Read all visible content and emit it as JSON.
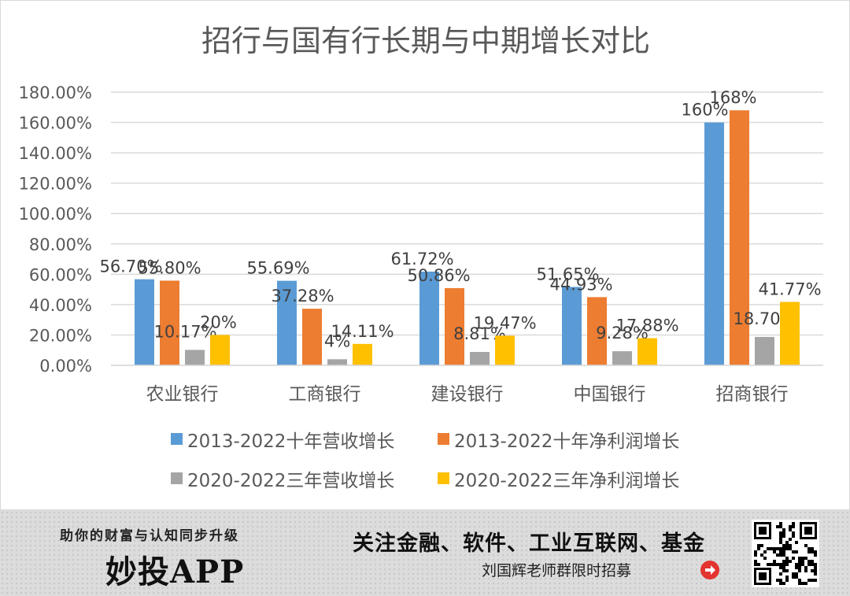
{
  "chart_data": {
    "type": "bar",
    "title": "招行与国有行长期与中期增长对比",
    "categories": [
      "农业银行",
      "工商银行",
      "建设银行",
      "中国银行",
      "招商银行"
    ],
    "ylim": [
      0,
      180
    ],
    "yticks": [
      "0.00%",
      "20.00%",
      "40.00%",
      "60.00%",
      "80.00%",
      "100.00%",
      "120.00%",
      "140.00%",
      "160.00%",
      "180.00%"
    ],
    "grid": true,
    "legend_position": "bottom",
    "series": [
      {
        "name": "2013-2022十年营收增长",
        "color": "#5b9bd5",
        "values": [
          56.7,
          55.69,
          61.72,
          51.65,
          160
        ],
        "labels": [
          "56.70%",
          "55.69%",
          "61.72%",
          "51.65%",
          "160%"
        ]
      },
      {
        "name": "2013-2022十年净利润增长",
        "color": "#ed7d31",
        "values": [
          55.8,
          37.28,
          50.86,
          44.93,
          168
        ],
        "labels": [
          "55.80%",
          "37.28%",
          "50.86%",
          "44.93%",
          "168%"
        ]
      },
      {
        "name": "2020-2022三年营收增长",
        "color": "#a5a5a5",
        "values": [
          10.17,
          4,
          8.81,
          9.28,
          18.7
        ],
        "labels": [
          "10.17%",
          "4%",
          "8.81%",
          "9.28%",
          "18.70%"
        ]
      },
      {
        "name": "2020-2022三年净利润增长",
        "color": "#ffc000",
        "values": [
          20,
          14.11,
          19.47,
          17.88,
          41.77
        ],
        "labels": [
          "20%",
          "14.11%",
          "19.47%",
          "17.88%",
          "41.77%"
        ]
      }
    ]
  },
  "banner": {
    "slogan": "助你的财富与认知同步升级",
    "brand": "妙投APP",
    "headline": "关注金融、软件、工业互联网、基金",
    "sub": "刘国辉老师群限时招募",
    "arrow_icon": "arrow-right-circle-icon",
    "qr_icon": "qr-code-icon"
  }
}
